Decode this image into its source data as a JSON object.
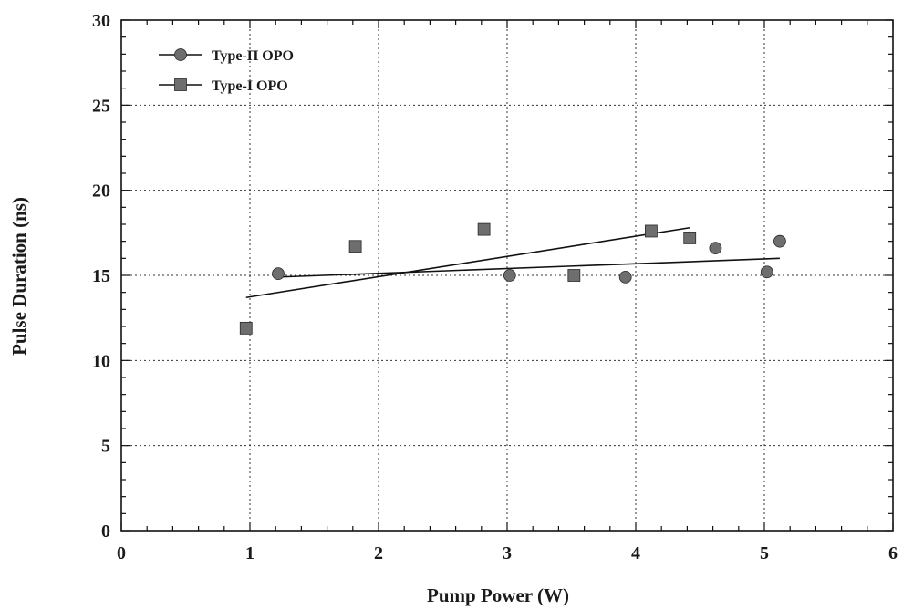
{
  "chart_data": {
    "type": "scatter",
    "xlabel": "Pump Power  (W)",
    "ylabel": "Pulse Duration (ns)",
    "xlim": [
      0,
      6
    ],
    "ylim": [
      0,
      30
    ],
    "x_ticks": [
      0,
      1,
      2,
      3,
      4,
      5,
      6
    ],
    "y_ticks": [
      0,
      5,
      10,
      15,
      20,
      25,
      30
    ],
    "grid": true,
    "legend_position": "top-left",
    "series": [
      {
        "name": "Type-Π OPO",
        "marker": "circle",
        "color": "#6e6e6e",
        "points": [
          [
            1.22,
            15.1
          ],
          [
            3.02,
            15.0
          ],
          [
            3.92,
            14.9
          ],
          [
            4.62,
            16.6
          ],
          [
            5.02,
            15.2
          ],
          [
            5.12,
            17.0
          ]
        ],
        "fit_line": [
          [
            1.22,
            14.9
          ],
          [
            5.12,
            16.0
          ]
        ]
      },
      {
        "name": "Type-I OPO",
        "marker": "square",
        "color": "#6e6e6e",
        "points": [
          [
            0.97,
            11.9
          ],
          [
            1.82,
            16.7
          ],
          [
            2.82,
            17.7
          ],
          [
            3.52,
            15.0
          ],
          [
            4.12,
            17.6
          ],
          [
            4.42,
            17.2
          ]
        ],
        "fit_line": [
          [
            0.97,
            13.7
          ],
          [
            4.42,
            17.8
          ]
        ]
      }
    ]
  }
}
